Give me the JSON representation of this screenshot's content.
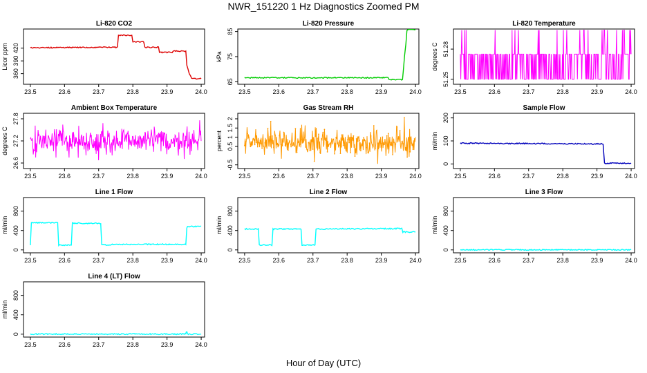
{
  "title": "NWR_151220  1 Hz Diagnostics Zoomed PM",
  "xlabel": "Hour of Day (UTC)",
  "colors": {
    "red": "#dd0000",
    "green": "#00cc00",
    "magenta": "#ff00ff",
    "orange": "#ff9900",
    "blue": "#0000bb",
    "cyan": "#00ffff"
  },
  "chart_data": [
    {
      "id": "li820-co2",
      "type": "line",
      "title": "Li-820 CO2",
      "ylabel": "Licor ppm",
      "xlim": [
        23.48,
        24.01
      ],
      "ylim": [
        335,
        465
      ],
      "xticks": [
        "23.5",
        "23.6",
        "23.7",
        "23.8",
        "23.9",
        "24.0"
      ],
      "yticks": [
        360,
        390,
        420
      ],
      "color": "red",
      "style": "step",
      "x": [
        23.5,
        23.755,
        23.758,
        23.797,
        23.8,
        23.832,
        23.835,
        23.875,
        23.878,
        23.915,
        23.918,
        23.955,
        23.958,
        23.965,
        23.972,
        23.978,
        24.0
      ],
      "y": [
        421,
        422,
        450,
        450,
        435,
        435,
        422,
        422,
        410,
        410,
        413,
        413,
        380,
        360,
        350,
        348,
        348
      ]
    },
    {
      "id": "li820-pressure",
      "type": "line",
      "title": "Li-820 Pressure",
      "ylabel": "kPa",
      "xlim": [
        23.48,
        24.01
      ],
      "ylim": [
        64,
        86
      ],
      "xticks": [
        "23.5",
        "23.6",
        "23.7",
        "23.8",
        "23.9",
        "24.0"
      ],
      "yticks": [
        65,
        75,
        85
      ],
      "color": "green",
      "style": "step",
      "x": [
        23.5,
        23.92,
        23.922,
        23.962,
        23.968,
        23.972,
        23.975,
        23.98,
        24.0
      ],
      "y": [
        66.6,
        66.6,
        65.8,
        65.8,
        75.0,
        80.0,
        85.5,
        85.8,
        85.8
      ]
    },
    {
      "id": "li820-temperature",
      "type": "line",
      "title": "Li-820 Temperature",
      "ylabel": "degrees C",
      "xlim": [
        23.48,
        24.01
      ],
      "ylim": [
        51.245,
        51.3
      ],
      "xticks": [
        "23.5",
        "23.6",
        "23.7",
        "23.8",
        "23.9",
        "24.0"
      ],
      "yticks": [
        51.25,
        51.28
      ],
      "color": "magenta",
      "style": "noise",
      "noise": {
        "base": 51.25,
        "high": 51.275,
        "spike": 51.299,
        "band_pct": [
          0,
          100
        ],
        "seed": 7
      }
    },
    {
      "id": "ambient-box-temperature",
      "type": "line",
      "title": "Ambient Box Temperature",
      "ylabel": "degrees C",
      "xlim": [
        23.48,
        24.01
      ],
      "ylim": [
        26.45,
        27.95
      ],
      "xticks": [
        "23.5",
        "23.6",
        "23.7",
        "23.8",
        "23.9",
        "24.0"
      ],
      "yticks": [
        26.6,
        27.2,
        27.8
      ],
      "color": "magenta",
      "style": "noise",
      "noise": {
        "mean": 27.2,
        "sd": 0.18,
        "min": 26.55,
        "max": 27.85,
        "seed": 11
      }
    },
    {
      "id": "gas-stream-rh",
      "type": "line",
      "title": "Gas Stream RH",
      "ylabel": "percent",
      "xlim": [
        23.48,
        24.01
      ],
      "ylim": [
        -0.7,
        2.3
      ],
      "xticks": [
        "23.5",
        "23.6",
        "23.7",
        "23.8",
        "23.9",
        "24.0"
      ],
      "yticks": [
        -0.5,
        0.5,
        1.0,
        1.5,
        2.0
      ],
      "color": "orange",
      "style": "noise",
      "points": true,
      "noise": {
        "mean": 0.75,
        "sd": 0.35,
        "min": -0.6,
        "max": 2.2,
        "seed": 23
      }
    },
    {
      "id": "sample-flow",
      "type": "line",
      "title": "Sample Flow",
      "ylabel": "ml/min",
      "xlim": [
        23.48,
        24.01
      ],
      "ylim": [
        -20,
        220
      ],
      "xticks": [
        "23.5",
        "23.6",
        "23.7",
        "23.8",
        "23.9",
        "24.0"
      ],
      "yticks": [
        0,
        100,
        200
      ],
      "color": "blue",
      "style": "step",
      "x": [
        23.5,
        23.915,
        23.918,
        23.922,
        24.0
      ],
      "y": [
        90,
        87,
        87,
        3,
        3
      ]
    },
    {
      "id": "line-1-flow",
      "type": "line",
      "title": "Line 1 Flow",
      "ylabel": "ml/min",
      "xlim": [
        23.48,
        24.01
      ],
      "ylim": [
        -60,
        1080
      ],
      "xticks": [
        "23.5",
        "23.6",
        "23.7",
        "23.8",
        "23.9",
        "24.0"
      ],
      "yticks": [
        0,
        400,
        800
      ],
      "color": "cyan",
      "style": "step",
      "x": [
        23.5,
        23.503,
        23.58,
        23.583,
        23.62,
        23.623,
        23.706,
        23.709,
        23.75,
        23.955,
        23.958,
        23.96,
        24.0
      ],
      "y": [
        100,
        560,
        560,
        100,
        100,
        550,
        550,
        100,
        115,
        115,
        450,
        480,
        490
      ]
    },
    {
      "id": "line-2-flow",
      "type": "line",
      "title": "Line 2 Flow",
      "ylabel": "ml/min",
      "xlim": [
        23.48,
        24.01
      ],
      "ylim": [
        -60,
        1080
      ],
      "xticks": [
        "23.5",
        "23.6",
        "23.7",
        "23.8",
        "23.9",
        "24.0"
      ],
      "yticks": [
        0,
        400,
        800
      ],
      "color": "cyan",
      "style": "step",
      "x": [
        23.5,
        23.54,
        23.543,
        23.58,
        23.583,
        23.665,
        23.668,
        23.706,
        23.709,
        23.96,
        23.963,
        24.0
      ],
      "y": [
        430,
        430,
        100,
        100,
        430,
        430,
        100,
        100,
        430,
        440,
        370,
        370
      ]
    },
    {
      "id": "line-3-flow",
      "type": "line",
      "title": "Line 3 Flow",
      "ylabel": "ml/min",
      "xlim": [
        23.48,
        24.01
      ],
      "ylim": [
        -60,
        1080
      ],
      "xticks": [
        "23.5",
        "23.6",
        "23.7",
        "23.8",
        "23.9",
        "24.0"
      ],
      "yticks": [
        0,
        400,
        800
      ],
      "color": "cyan",
      "style": "step",
      "x": [
        23.5,
        24.0
      ],
      "y": [
        2,
        2
      ]
    },
    {
      "id": "line-4-lt-flow",
      "type": "line",
      "title": "Line 4 (LT) Flow",
      "ylabel": "ml/min",
      "xlim": [
        23.48,
        24.01
      ],
      "ylim": [
        -60,
        1080
      ],
      "xticks": [
        "23.5",
        "23.6",
        "23.7",
        "23.8",
        "23.9",
        "24.0"
      ],
      "yticks": [
        0,
        400,
        800
      ],
      "color": "cyan",
      "style": "step",
      "x": [
        23.5,
        23.955,
        23.956,
        23.958,
        23.96,
        24.0
      ],
      "y": [
        2,
        2,
        40,
        60,
        2,
        2
      ]
    }
  ]
}
